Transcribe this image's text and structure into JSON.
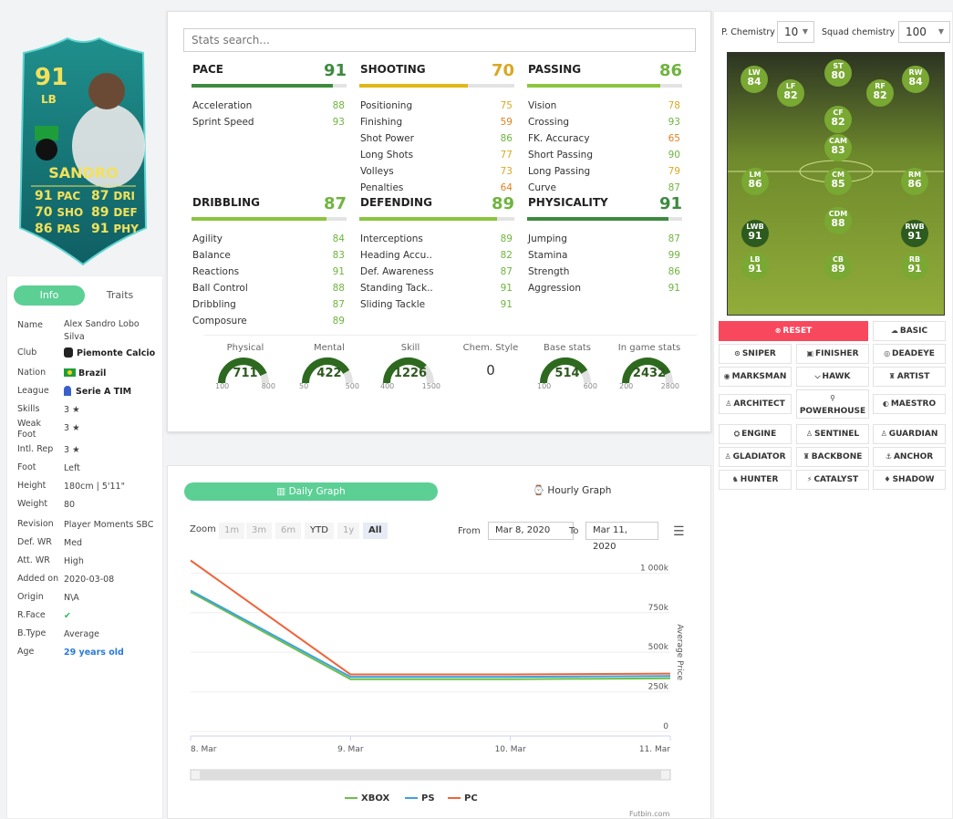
{
  "card": {
    "rating": "91",
    "position": "LB",
    "name": "SANDRO",
    "stats": [
      {
        "v": "91",
        "k": "PAC"
      },
      {
        "v": "87",
        "k": "DRI"
      },
      {
        "v": "70",
        "k": "SHO"
      },
      {
        "v": "89",
        "k": "DEF"
      },
      {
        "v": "86",
        "k": "PAS"
      },
      {
        "v": "91",
        "k": "PHY"
      }
    ],
    "colors": {
      "bg": "#1f8f8c",
      "bg_dark": "#0f5f63",
      "text": "#f3e15a"
    }
  },
  "info": {
    "tabs": [
      "Info",
      "Traits"
    ],
    "rows": [
      {
        "k": "Name",
        "v": "Alex Sandro Lobo Silva"
      },
      {
        "k": "Club",
        "v": "Piemonte Calcio"
      },
      {
        "k": "Nation",
        "v": "Brazil"
      },
      {
        "k": "League",
        "v": "Serie A TIM"
      },
      {
        "k": "Skills",
        "v": "3 ★"
      },
      {
        "k": "Weak Foot",
        "v": "3 ★"
      },
      {
        "k": "Intl. Rep",
        "v": "3 ★"
      },
      {
        "k": "Foot",
        "v": "Left"
      },
      {
        "k": "Height",
        "v": "180cm | 5'11\""
      },
      {
        "k": "Weight",
        "v": "80"
      },
      {
        "k": "Revision",
        "v": "Player Moments SBC"
      },
      {
        "k": "Def. WR",
        "v": "Med"
      },
      {
        "k": "Att. WR",
        "v": "High"
      },
      {
        "k": "Added on",
        "v": "2020-03-08"
      },
      {
        "k": "Origin",
        "v": "N\\A"
      },
      {
        "k": "R.Face",
        "v": "✔"
      },
      {
        "k": "B.Type",
        "v": "Average"
      },
      {
        "k": "Age",
        "v": "29 years old"
      }
    ]
  },
  "stats": {
    "search_placeholder": "Stats search...",
    "groups": [
      {
        "title": "PACE",
        "value": "91",
        "pct": 0.91,
        "color": "#3d8a3f",
        "items": [
          [
            "Acceleration",
            "88"
          ],
          [
            "Sprint Speed",
            "93"
          ]
        ]
      },
      {
        "title": "SHOOTING",
        "value": "70",
        "pct": 0.7,
        "color": "#e0b818",
        "items": [
          [
            "Positioning",
            "75"
          ],
          [
            "Finishing",
            "59"
          ],
          [
            "Shot Power",
            "86"
          ],
          [
            "Long Shots",
            "77"
          ],
          [
            "Volleys",
            "73"
          ],
          [
            "Penalties",
            "64"
          ]
        ]
      },
      {
        "title": "PASSING",
        "value": "86",
        "pct": 0.86,
        "color": "#8bc53f",
        "items": [
          [
            "Vision",
            "78"
          ],
          [
            "Crossing",
            "93"
          ],
          [
            "FK. Accuracy",
            "65"
          ],
          [
            "Short Passing",
            "90"
          ],
          [
            "Long Passing",
            "79"
          ],
          [
            "Curve",
            "87"
          ]
        ]
      },
      {
        "title": "DRIBBLING",
        "value": "87",
        "pct": 0.87,
        "color": "#8bc53f",
        "items": [
          [
            "Agility",
            "84"
          ],
          [
            "Balance",
            "83"
          ],
          [
            "Reactions",
            "91"
          ],
          [
            "Ball Control",
            "88"
          ],
          [
            "Dribbling",
            "87"
          ],
          [
            "Composure",
            "89"
          ]
        ]
      },
      {
        "title": "DEFENDING",
        "value": "89",
        "pct": 0.89,
        "color": "#8bc53f",
        "items": [
          [
            "Interceptions",
            "89"
          ],
          [
            "Heading Accu..",
            "82"
          ],
          [
            "Def. Awareness",
            "87"
          ],
          [
            "Standing Tack..",
            "91"
          ],
          [
            "Sliding Tackle",
            "91"
          ]
        ]
      },
      {
        "title": "PHYSICALITY",
        "value": "91",
        "pct": 0.91,
        "color": "#3d8a3f",
        "items": [
          [
            "Jumping",
            "87"
          ],
          [
            "Stamina",
            "99"
          ],
          [
            "Strength",
            "86"
          ],
          [
            "Aggression",
            "91"
          ]
        ]
      }
    ],
    "gauges": [
      {
        "cap": "Physical",
        "v": "711",
        "min": "100",
        "max": "800",
        "frac": 0.87
      },
      {
        "cap": "Mental",
        "v": "422",
        "min": "50",
        "max": "500",
        "frac": 0.83
      },
      {
        "cap": "Skill",
        "v": "1226",
        "min": "400",
        "max": "1500",
        "frac": 0.75
      },
      {
        "cap": "Chem. Style",
        "v": "0"
      },
      {
        "cap": "Base stats",
        "v": "514",
        "min": "100",
        "max": "600",
        "frac": 0.83
      },
      {
        "cap": "In game stats",
        "v": "2432",
        "min": "200",
        "max": "2800",
        "frac": 0.86
      }
    ]
  },
  "graph": {
    "tab_daily": "Daily Graph",
    "tab_hourly": "Hourly Graph",
    "zoom_label": "Zoom",
    "zoom_buttons": [
      "1m",
      "3m",
      "6m",
      "YTD",
      "1y",
      "All"
    ],
    "from_label": "From",
    "from_value": "Mar 8, 2020",
    "to_label": "To",
    "to_value": "Mar 11, 2020",
    "credit": "Futbin.com"
  },
  "chart_data": {
    "type": "line",
    "x": [
      "8. Mar",
      "9. Mar",
      "10. Mar",
      "11. Mar"
    ],
    "ylabel": "Average Price",
    "yticks": [
      "0",
      "250k",
      "500k",
      "750k",
      "1 000k"
    ],
    "ylim": [
      0,
      1100000
    ],
    "series": [
      {
        "name": "XBOX",
        "color": "#6cc04a",
        "values": [
          880000,
          330000,
          330000,
          335000
        ]
      },
      {
        "name": "PS",
        "color": "#3fa0e0",
        "values": [
          890000,
          345000,
          345000,
          350000
        ]
      },
      {
        "name": "PC",
        "color": "#f0643a",
        "values": [
          1080000,
          360000,
          360000,
          365000
        ]
      }
    ]
  },
  "right": {
    "pchem_label": "P. Chemistry",
    "pchem_value": "10",
    "squad_label": "Squad chemistry",
    "squad_value": "100",
    "players": [
      {
        "p": "LW",
        "r": "84"
      },
      {
        "p": "LF",
        "r": "82"
      },
      {
        "p": "ST",
        "r": "80"
      },
      {
        "p": "RF",
        "r": "82"
      },
      {
        "p": "RW",
        "r": "84"
      },
      {
        "p": "CF",
        "r": "82"
      },
      {
        "p": "CAM",
        "r": "83"
      },
      {
        "p": "LM",
        "r": "86"
      },
      {
        "p": "CM",
        "r": "85"
      },
      {
        "p": "RM",
        "r": "86"
      },
      {
        "p": "CDM",
        "r": "88"
      },
      {
        "p": "LWB",
        "r": "91"
      },
      {
        "p": "RWB",
        "r": "91"
      },
      {
        "p": "LB",
        "r": "91"
      },
      {
        "p": "CB",
        "r": "89"
      },
      {
        "p": "RB",
        "r": "91"
      }
    ],
    "chem_styles": [
      "RESET",
      "BASIC",
      "SNIPER",
      "FINISHER",
      "DEADEYE",
      "MARKSMAN",
      "HAWK",
      "ARTIST",
      "ARCHITECT",
      "POWERHOUSE",
      "MAESTRO",
      "ENGINE",
      "SENTINEL",
      "GUARDIAN",
      "GLADIATOR",
      "BACKBONE",
      "ANCHOR",
      "HUNTER",
      "CATALYST",
      "SHADOW"
    ]
  }
}
